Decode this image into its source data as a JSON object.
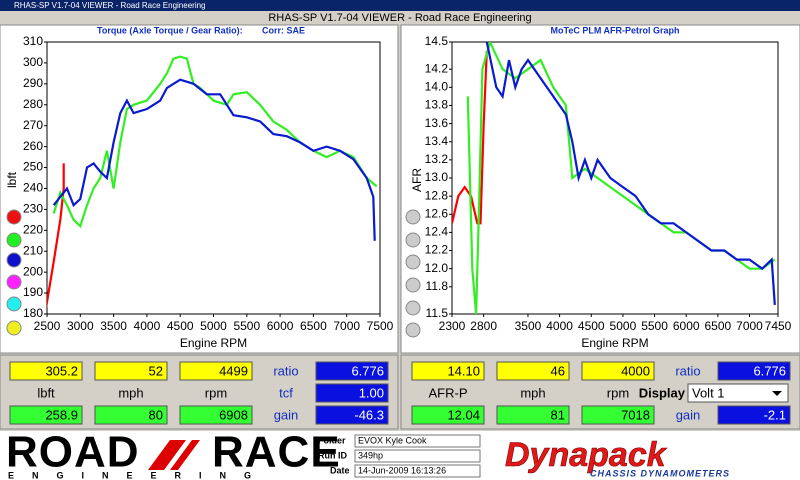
{
  "window_title": "RHAS-SP V1.7-04  VIEWER - Road Race Engineering",
  "header_title": "RHAS-SP V1.7-04  VIEWER - Road Race Engineering",
  "torque_chart": {
    "type": "line",
    "title": "Torque (Axle Torque / Gear Ratio):",
    "subtitle": "Corr: SAE",
    "x_label": "Engine RPM",
    "y_label": "lbft",
    "xlim": [
      2500,
      7500
    ],
    "ylim": [
      180,
      310
    ],
    "xticks": [
      2500,
      3000,
      3500,
      4000,
      4500,
      5000,
      5500,
      6000,
      6500,
      7000,
      7500
    ],
    "yticks": [
      180,
      190,
      200,
      210,
      220,
      230,
      240,
      250,
      260,
      270,
      280,
      290,
      300,
      310
    ],
    "series": [
      {
        "color": "#ff0000",
        "x": [
          2480,
          2600,
          2700,
          2750,
          2750
        ],
        "values": [
          182,
          205,
          225,
          240,
          252
        ]
      },
      {
        "color": "#33ee22",
        "x": [
          2600,
          2700,
          2800,
          2900,
          3000,
          3100,
          3200,
          3300,
          3400,
          3500,
          3600,
          3700,
          3800,
          4000,
          4200,
          4300,
          4400,
          4500,
          4600,
          4700,
          4800,
          5000,
          5200,
          5300,
          5500,
          5700,
          5900,
          6100,
          6300,
          6500,
          6700,
          6900,
          7100,
          7300,
          7450
        ],
        "values": [
          228,
          238,
          232,
          225,
          222,
          232,
          240,
          245,
          258,
          240,
          262,
          278,
          280,
          282,
          290,
          295,
          302,
          303,
          302,
          290,
          288,
          282,
          280,
          285,
          286,
          280,
          272,
          268,
          262,
          258,
          255,
          258,
          255,
          245,
          241
        ]
      },
      {
        "color": "#0a1ad0",
        "x": [
          2600,
          2700,
          2800,
          2900,
          3000,
          3100,
          3200,
          3300,
          3400,
          3500,
          3600,
          3700,
          3800,
          4000,
          4200,
          4300,
          4400,
          4500,
          4700,
          4900,
          5100,
          5300,
          5500,
          5700,
          5900,
          6100,
          6300,
          6500,
          6700,
          6900,
          7100,
          7300,
          7400,
          7420
        ],
        "values": [
          232,
          236,
          240,
          232,
          235,
          250,
          252,
          248,
          245,
          262,
          276,
          282,
          276,
          278,
          282,
          288,
          290,
          292,
          290,
          285,
          285,
          275,
          274,
          272,
          266,
          265,
          262,
          258,
          260,
          258,
          254,
          245,
          236,
          215
        ]
      }
    ]
  },
  "afr_chart": {
    "type": "line",
    "title": "MoTeC PLM AFR-Petrol Graph",
    "x_label": "Engine RPM",
    "y_label": "AFR",
    "xlim": [
      2300,
      7450
    ],
    "ylim": [
      11.5,
      14.5
    ],
    "xticks": [
      2300,
      2800,
      3500,
      4000,
      4500,
      5000,
      5500,
      6000,
      6500,
      7000,
      7450
    ],
    "yticks": [
      11.5,
      11.8,
      {
        "value": 12,
        "label": "12.0"
      },
      12.2,
      12.4,
      12.6,
      12.8,
      {
        "value": 13,
        "label": "13.0"
      },
      13.2,
      13.4,
      13.6,
      13.8,
      {
        "value": 14,
        "label": "14.0"
      },
      14.2,
      14.5
    ],
    "series": [
      {
        "color": "#ff0000",
        "x": [
          2300,
          2400,
          2500,
          2600,
          2700,
          2750,
          2800,
          2850
        ],
        "values": [
          12.5,
          12.8,
          12.9,
          12.8,
          12.5,
          12.5,
          13.6,
          14.4
        ]
      },
      {
        "color": "#33ee22",
        "x": [
          2550,
          2620,
          2680,
          2720,
          2780,
          2900,
          3100,
          3300,
          3500,
          3700,
          3900,
          4100,
          4200,
          4400,
          4600,
          4800,
          5000,
          5200,
          5400,
          5600,
          5800,
          6000,
          6200,
          6400,
          6600,
          6800,
          7000,
          7200,
          7400
        ],
        "values": [
          13.9,
          12.0,
          11.5,
          12.5,
          14.2,
          14.5,
          14.2,
          14.1,
          14.2,
          14.3,
          14.0,
          13.8,
          13.0,
          13.1,
          13.0,
          12.9,
          12.8,
          12.7,
          12.6,
          12.5,
          12.4,
          12.4,
          12.3,
          12.2,
          12.2,
          12.1,
          12.0,
          12.0,
          12.1
        ]
      },
      {
        "color": "#0a1ad0",
        "x": [
          2850,
          3000,
          3100,
          3200,
          3300,
          3400,
          3500,
          3700,
          3900,
          4100,
          4200,
          4300,
          4400,
          4500,
          4600,
          4700,
          4800,
          5000,
          5200,
          5400,
          5600,
          5800,
          6000,
          6200,
          6400,
          6600,
          6800,
          7000,
          7200,
          7350,
          7400
        ],
        "values": [
          14.5,
          14.0,
          13.9,
          14.3,
          14.0,
          14.2,
          14.3,
          14.1,
          13.9,
          13.7,
          13.4,
          13.0,
          13.2,
          13.0,
          13.2,
          13.1,
          13.0,
          12.9,
          12.8,
          12.6,
          12.5,
          12.5,
          12.4,
          12.3,
          12.2,
          12.2,
          12.1,
          12.1,
          12.0,
          12.1,
          11.6
        ]
      }
    ]
  },
  "left_panel": {
    "row1": [
      "305.2",
      "52",
      "4499"
    ],
    "row2": [
      "lbft",
      "mph",
      "rpm"
    ],
    "row3": [
      "258.9",
      "80",
      "6908"
    ],
    "side_labels": [
      "ratio",
      "tcf",
      "gain"
    ],
    "side_values": [
      "6.776",
      "1.00",
      "-46.3"
    ]
  },
  "right_panel": {
    "row1": [
      "14.10",
      "46",
      "4000"
    ],
    "row2": [
      "AFR-P",
      "mph",
      "rpm"
    ],
    "row3": [
      "12.04",
      "81",
      "7018"
    ],
    "side_labels": [
      "ratio",
      "Display",
      "gain"
    ],
    "side_values": [
      "6.776",
      "Volt 1",
      "-2.1"
    ]
  },
  "footer": {
    "logo_left": [
      "ROAD",
      "RACE"
    ],
    "logo_left_sub": "ENGINEERING",
    "info_labels": [
      "Folder",
      "Run ID",
      "Date"
    ],
    "info_values": [
      "EVOX Kyle Cook",
      "349hp",
      "14-Jun-2009  16:13:26"
    ],
    "logo_right": "Dynapack",
    "logo_right_sub": "CHASSIS DYNAMOMETERS"
  }
}
